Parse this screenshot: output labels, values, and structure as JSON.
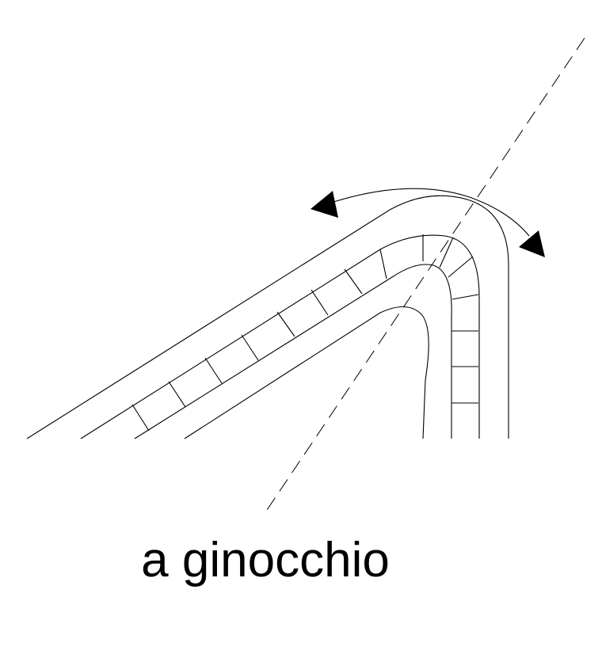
{
  "caption": "a ginocchio",
  "colors": {
    "ink": "#000000",
    "background": "#ffffff"
  }
}
